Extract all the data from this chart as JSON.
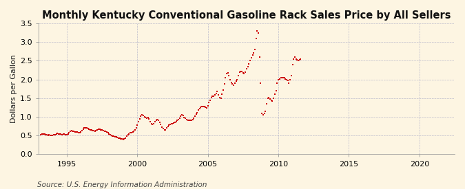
{
  "title": "Monthly Kentucky Conventional Gasoline Rack Sales Price by All Sellers",
  "ylabel": "Dollars per Gallon",
  "source": "Source: U.S. Energy Information Administration",
  "background_color": "#FDF5E2",
  "plot_bg_color": "#FDF5E2",
  "marker_color": "#CC0000",
  "xlim": [
    1993.0,
    2022.5
  ],
  "ylim": [
    0.0,
    3.5
  ],
  "yticks": [
    0.0,
    0.5,
    1.0,
    1.5,
    2.0,
    2.5,
    3.0,
    3.5
  ],
  "xticks": [
    1995,
    2000,
    2005,
    2010,
    2015,
    2020
  ],
  "title_fontsize": 10.5,
  "label_fontsize": 8,
  "tick_fontsize": 8,
  "source_fontsize": 7.5,
  "data": [
    [
      1993.17,
      0.52
    ],
    [
      1993.25,
      0.54
    ],
    [
      1993.33,
      0.55
    ],
    [
      1993.42,
      0.54
    ],
    [
      1993.5,
      0.53
    ],
    [
      1993.58,
      0.52
    ],
    [
      1993.67,
      0.51
    ],
    [
      1993.75,
      0.52
    ],
    [
      1993.83,
      0.51
    ],
    [
      1993.92,
      0.5
    ],
    [
      1994.0,
      0.51
    ],
    [
      1994.08,
      0.52
    ],
    [
      1994.17,
      0.53
    ],
    [
      1994.25,
      0.55
    ],
    [
      1994.33,
      0.56
    ],
    [
      1994.42,
      0.55
    ],
    [
      1994.5,
      0.54
    ],
    [
      1994.58,
      0.54
    ],
    [
      1994.67,
      0.53
    ],
    [
      1994.75,
      0.54
    ],
    [
      1994.83,
      0.54
    ],
    [
      1994.92,
      0.53
    ],
    [
      1995.0,
      0.52
    ],
    [
      1995.08,
      0.55
    ],
    [
      1995.17,
      0.58
    ],
    [
      1995.25,
      0.61
    ],
    [
      1995.33,
      0.63
    ],
    [
      1995.42,
      0.62
    ],
    [
      1995.5,
      0.61
    ],
    [
      1995.58,
      0.6
    ],
    [
      1995.67,
      0.6
    ],
    [
      1995.75,
      0.59
    ],
    [
      1995.83,
      0.58
    ],
    [
      1995.92,
      0.57
    ],
    [
      1996.0,
      0.6
    ],
    [
      1996.08,
      0.64
    ],
    [
      1996.17,
      0.67
    ],
    [
      1996.25,
      0.7
    ],
    [
      1996.33,
      0.71
    ],
    [
      1996.42,
      0.7
    ],
    [
      1996.5,
      0.68
    ],
    [
      1996.58,
      0.67
    ],
    [
      1996.67,
      0.66
    ],
    [
      1996.75,
      0.65
    ],
    [
      1996.83,
      0.64
    ],
    [
      1996.92,
      0.63
    ],
    [
      1997.0,
      0.62
    ],
    [
      1997.08,
      0.64
    ],
    [
      1997.17,
      0.66
    ],
    [
      1997.25,
      0.67
    ],
    [
      1997.33,
      0.67
    ],
    [
      1997.42,
      0.66
    ],
    [
      1997.5,
      0.65
    ],
    [
      1997.58,
      0.64
    ],
    [
      1997.67,
      0.62
    ],
    [
      1997.75,
      0.61
    ],
    [
      1997.83,
      0.59
    ],
    [
      1997.92,
      0.57
    ],
    [
      1998.0,
      0.54
    ],
    [
      1998.08,
      0.52
    ],
    [
      1998.17,
      0.5
    ],
    [
      1998.25,
      0.49
    ],
    [
      1998.33,
      0.48
    ],
    [
      1998.42,
      0.47
    ],
    [
      1998.5,
      0.46
    ],
    [
      1998.58,
      0.45
    ],
    [
      1998.67,
      0.44
    ],
    [
      1998.75,
      0.43
    ],
    [
      1998.83,
      0.42
    ],
    [
      1998.92,
      0.41
    ],
    [
      1999.0,
      0.4
    ],
    [
      1999.08,
      0.41
    ],
    [
      1999.17,
      0.44
    ],
    [
      1999.25,
      0.48
    ],
    [
      1999.33,
      0.52
    ],
    [
      1999.42,
      0.55
    ],
    [
      1999.5,
      0.57
    ],
    [
      1999.58,
      0.58
    ],
    [
      1999.67,
      0.6
    ],
    [
      1999.75,
      0.62
    ],
    [
      1999.83,
      0.65
    ],
    [
      1999.92,
      0.7
    ],
    [
      2000.0,
      0.78
    ],
    [
      2000.08,
      0.88
    ],
    [
      2000.17,
      0.95
    ],
    [
      2000.25,
      1.02
    ],
    [
      2000.33,
      1.05
    ],
    [
      2000.42,
      1.03
    ],
    [
      2000.5,
      1.0
    ],
    [
      2000.58,
      0.98
    ],
    [
      2000.67,
      0.96
    ],
    [
      2000.75,
      0.98
    ],
    [
      2000.83,
      0.95
    ],
    [
      2000.92,
      0.88
    ],
    [
      2001.0,
      0.82
    ],
    [
      2001.08,
      0.8
    ],
    [
      2001.17,
      0.82
    ],
    [
      2001.25,
      0.88
    ],
    [
      2001.33,
      0.9
    ],
    [
      2001.42,
      0.92
    ],
    [
      2001.5,
      0.9
    ],
    [
      2001.58,
      0.86
    ],
    [
      2001.67,
      0.8
    ],
    [
      2001.75,
      0.72
    ],
    [
      2001.83,
      0.68
    ],
    [
      2001.92,
      0.65
    ],
    [
      2002.0,
      0.66
    ],
    [
      2002.08,
      0.7
    ],
    [
      2002.17,
      0.74
    ],
    [
      2002.25,
      0.78
    ],
    [
      2002.33,
      0.8
    ],
    [
      2002.42,
      0.82
    ],
    [
      2002.5,
      0.82
    ],
    [
      2002.58,
      0.83
    ],
    [
      2002.67,
      0.85
    ],
    [
      2002.75,
      0.88
    ],
    [
      2002.83,
      0.9
    ],
    [
      2002.92,
      0.92
    ],
    [
      2003.0,
      0.96
    ],
    [
      2003.08,
      1.02
    ],
    [
      2003.17,
      1.05
    ],
    [
      2003.25,
      1.03
    ],
    [
      2003.33,
      0.99
    ],
    [
      2003.42,
      0.96
    ],
    [
      2003.5,
      0.93
    ],
    [
      2003.58,
      0.9
    ],
    [
      2003.67,
      0.9
    ],
    [
      2003.75,
      0.9
    ],
    [
      2003.83,
      0.9
    ],
    [
      2003.92,
      0.93
    ],
    [
      2004.0,
      0.97
    ],
    [
      2004.08,
      1.02
    ],
    [
      2004.17,
      1.08
    ],
    [
      2004.25,
      1.12
    ],
    [
      2004.33,
      1.18
    ],
    [
      2004.42,
      1.22
    ],
    [
      2004.5,
      1.25
    ],
    [
      2004.58,
      1.27
    ],
    [
      2004.67,
      1.28
    ],
    [
      2004.75,
      1.28
    ],
    [
      2004.83,
      1.26
    ],
    [
      2004.92,
      1.24
    ],
    [
      2005.0,
      1.3
    ],
    [
      2005.08,
      1.38
    ],
    [
      2005.17,
      1.45
    ],
    [
      2005.25,
      1.52
    ],
    [
      2005.33,
      1.55
    ],
    [
      2005.42,
      1.55
    ],
    [
      2005.5,
      1.58
    ],
    [
      2005.58,
      1.62
    ],
    [
      2005.67,
      1.68
    ],
    [
      2005.75,
      1.58
    ],
    [
      2005.83,
      1.52
    ],
    [
      2005.92,
      1.5
    ],
    [
      2006.0,
      1.6
    ],
    [
      2006.08,
      1.72
    ],
    [
      2006.17,
      1.88
    ],
    [
      2006.25,
      2.05
    ],
    [
      2006.33,
      2.15
    ],
    [
      2006.42,
      2.18
    ],
    [
      2006.5,
      2.1
    ],
    [
      2006.58,
      2.0
    ],
    [
      2006.67,
      1.92
    ],
    [
      2006.75,
      1.88
    ],
    [
      2006.83,
      1.85
    ],
    [
      2006.92,
      1.9
    ],
    [
      2007.0,
      1.95
    ],
    [
      2007.08,
      2.0
    ],
    [
      2007.17,
      2.1
    ],
    [
      2007.25,
      2.2
    ],
    [
      2007.33,
      2.22
    ],
    [
      2007.42,
      2.22
    ],
    [
      2007.5,
      2.18
    ],
    [
      2007.58,
      2.15
    ],
    [
      2007.67,
      2.2
    ],
    [
      2007.75,
      2.28
    ],
    [
      2007.83,
      2.35
    ],
    [
      2007.92,
      2.42
    ],
    [
      2008.0,
      2.5
    ],
    [
      2008.08,
      2.58
    ],
    [
      2008.17,
      2.65
    ],
    [
      2008.25,
      2.7
    ],
    [
      2008.33,
      2.8
    ],
    [
      2008.42,
      3.1
    ],
    [
      2008.5,
      3.3
    ],
    [
      2008.58,
      3.25
    ],
    [
      2008.67,
      2.6
    ],
    [
      2008.75,
      1.9
    ],
    [
      2008.83,
      1.1
    ],
    [
      2008.92,
      1.05
    ],
    [
      2009.0,
      1.1
    ],
    [
      2009.08,
      1.15
    ],
    [
      2009.17,
      1.35
    ],
    [
      2009.25,
      1.5
    ],
    [
      2009.33,
      1.52
    ],
    [
      2009.42,
      1.48
    ],
    [
      2009.5,
      1.45
    ],
    [
      2009.58,
      1.42
    ],
    [
      2009.67,
      1.5
    ],
    [
      2009.75,
      1.6
    ],
    [
      2009.83,
      1.7
    ],
    [
      2009.92,
      1.9
    ],
    [
      2010.0,
      2.0
    ],
    [
      2010.08,
      2.02
    ],
    [
      2010.17,
      2.05
    ],
    [
      2010.25,
      2.05
    ],
    [
      2010.33,
      2.05
    ],
    [
      2010.42,
      2.05
    ],
    [
      2010.5,
      2.02
    ],
    [
      2010.58,
      2.0
    ],
    [
      2010.67,
      1.98
    ],
    [
      2010.75,
      1.9
    ],
    [
      2010.83,
      2.0
    ],
    [
      2010.92,
      2.1
    ],
    [
      2011.0,
      2.4
    ],
    [
      2011.08,
      2.55
    ],
    [
      2011.17,
      2.6
    ],
    [
      2011.25,
      2.55
    ],
    [
      2011.33,
      2.52
    ],
    [
      2011.42,
      2.5
    ],
    [
      2011.5,
      2.52
    ],
    [
      2011.58,
      2.55
    ]
  ]
}
